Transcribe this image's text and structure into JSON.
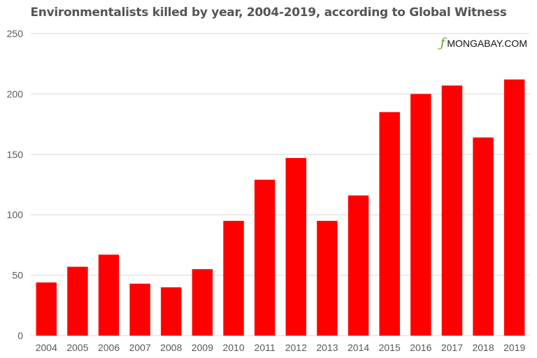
{
  "title": "Environmentalists killed by year, 2004-2019, according to Global Witness",
  "brand": {
    "logo_glyph": "ƒ",
    "label": "MONGABAY.COM",
    "logo_color": "#5aa02c"
  },
  "colors": {
    "bar": "#ff0000",
    "grid": "#d9d9d9",
    "tick_text": "#595959"
  },
  "chart_data": {
    "type": "bar",
    "title": "Environmentalists killed by year, 2004-2019, according to Global Witness",
    "xlabel": "",
    "ylabel": "",
    "categories": [
      "2004",
      "2005",
      "2006",
      "2007",
      "2008",
      "2009",
      "2010",
      "2011",
      "2012",
      "2013",
      "2014",
      "2015",
      "2016",
      "2017",
      "2018",
      "2019"
    ],
    "values": [
      44,
      57,
      67,
      43,
      40,
      55,
      95,
      129,
      147,
      95,
      116,
      185,
      200,
      207,
      164,
      212
    ],
    "ylim": [
      0,
      250
    ],
    "yticks": [
      0,
      50,
      100,
      150,
      200,
      250
    ],
    "grid": true,
    "legend": "none"
  }
}
